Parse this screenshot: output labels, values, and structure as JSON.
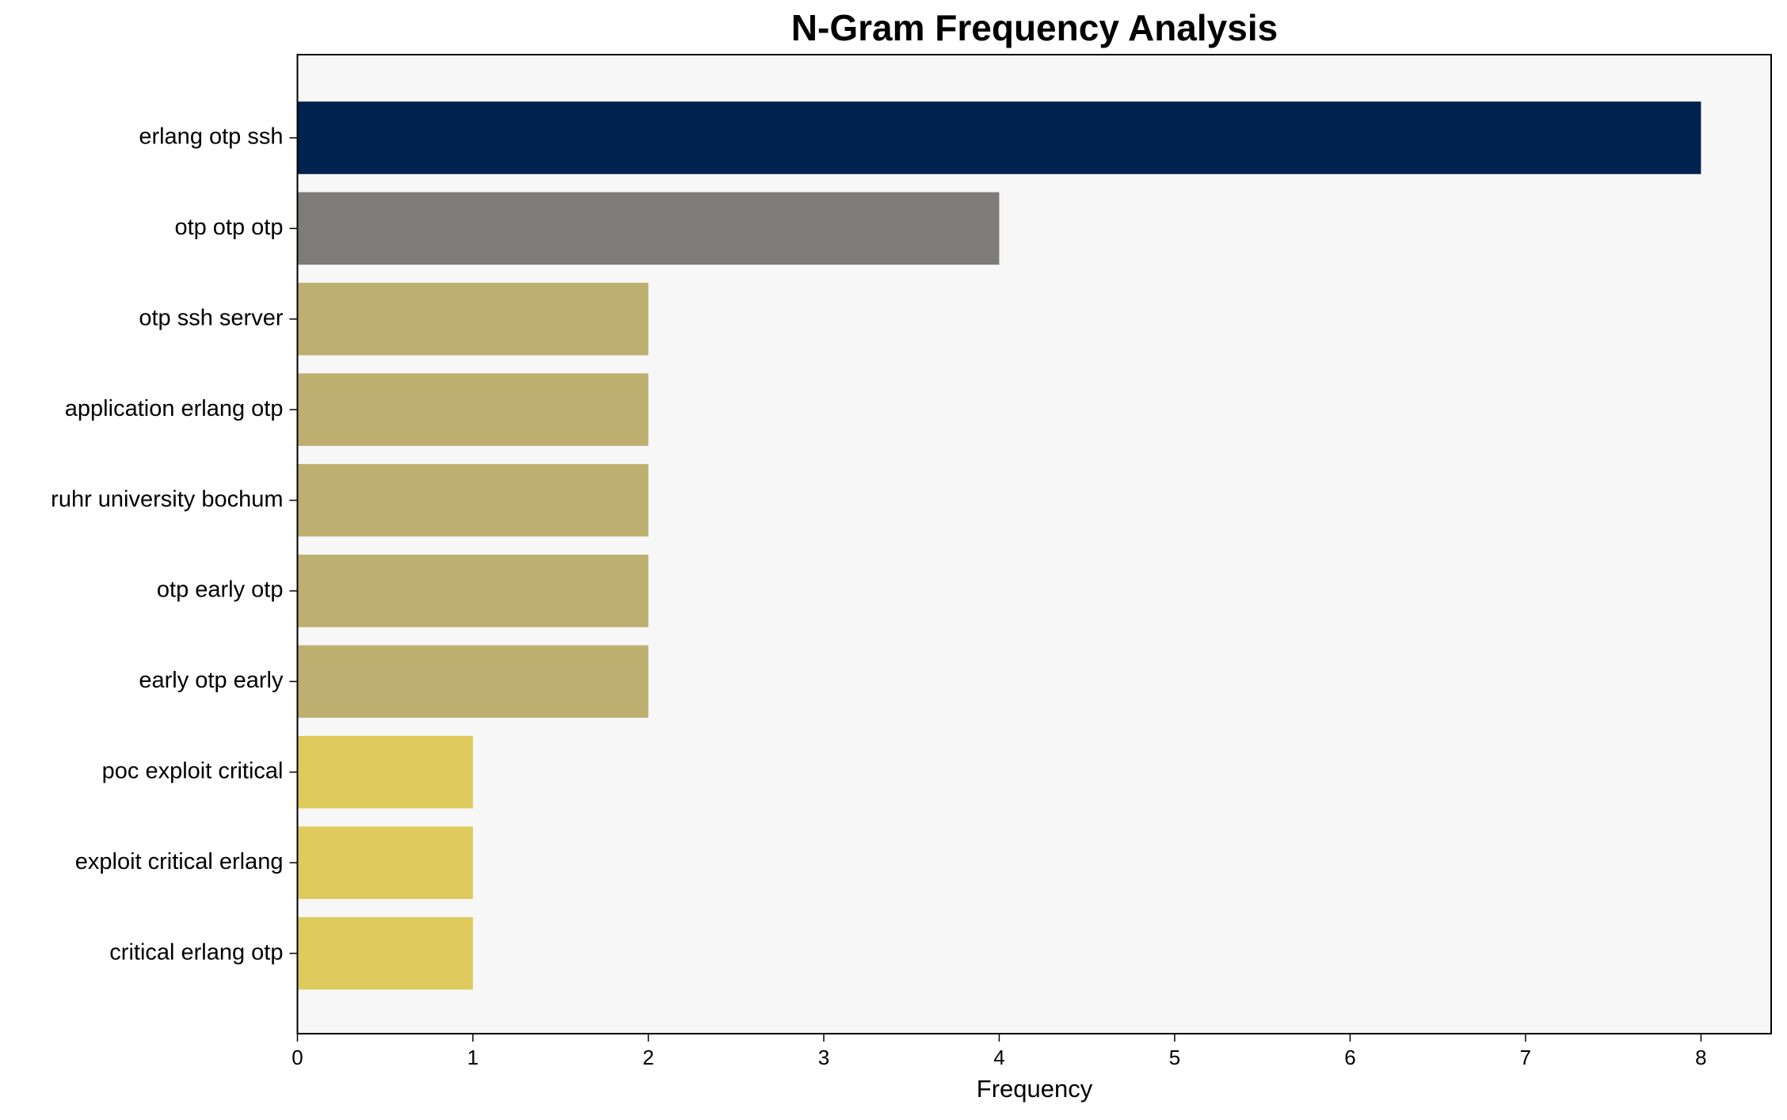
{
  "chart_data": {
    "type": "barh",
    "title": "N-Gram Frequency Analysis",
    "x_label": "Frequency",
    "categories": [
      "erlang otp ssh",
      "otp otp otp",
      "otp ssh server",
      "application erlang otp",
      "ruhr university bochum",
      "otp early otp",
      "early otp early",
      "poc exploit critical",
      "exploit critical erlang",
      "critical erlang otp"
    ],
    "values": [
      8,
      4,
      2,
      2,
      2,
      2,
      2,
      1,
      1,
      1
    ],
    "colors": [
      "#00224e",
      "#7d7c78",
      "#bcaf6f",
      "#bcaf6f",
      "#bcaf6f",
      "#bcaf6f",
      "#bcaf6f",
      "#dfcb5d",
      "#dfcb5d",
      "#dfcb5d"
    ],
    "xlim": [
      0,
      8.4
    ],
    "xticks": [
      0,
      1,
      2,
      3,
      4,
      5,
      6,
      7,
      8
    ],
    "grid": false
  }
}
